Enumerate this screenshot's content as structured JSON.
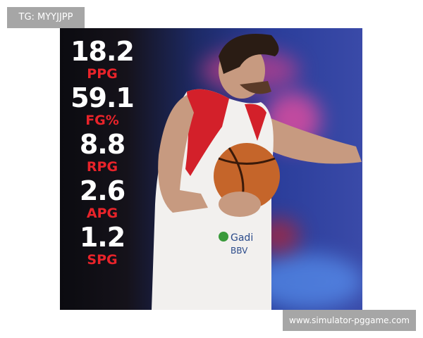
{
  "tag_label": "TG: MYYJJPP",
  "watermark": "www.simulator-pggame.com",
  "stats": [
    {
      "value": "18.2",
      "label": "PPG"
    },
    {
      "value": "59.1",
      "label": "FG%"
    },
    {
      "value": "8.8",
      "label": "RPG"
    },
    {
      "value": "2.6",
      "label": "APG"
    },
    {
      "value": "1.2",
      "label": "SPG"
    }
  ],
  "colors": {
    "stat_value": "#ffffff",
    "stat_label": "#e8232a",
    "jersey": "#f2f0ee",
    "jersey_trim": "#d3202a",
    "background": "#2a3d9a"
  }
}
